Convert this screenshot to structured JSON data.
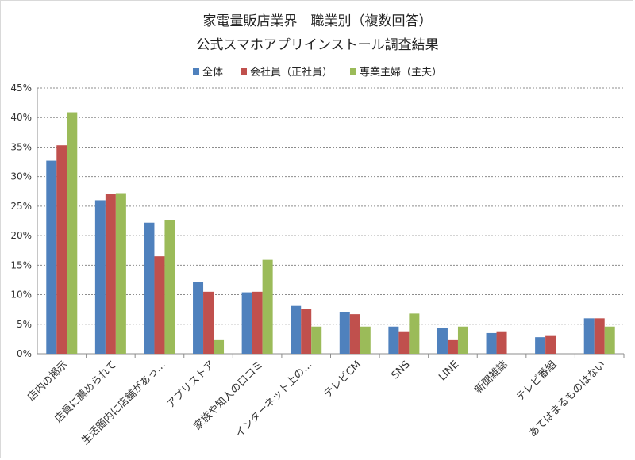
{
  "chart_data": {
    "type": "bar",
    "title": "家電量販店業界　職業別（複数回答）",
    "subtitle": "公式スマホアプリインストール調査結果",
    "categories": [
      "店内の掲示",
      "店員に薦められて",
      "生活圏内に店舗があっ…",
      "アプリストア",
      "家族や知人の口コミ",
      "インターネット上の…",
      "テレビCM",
      "SNS",
      "LINE",
      "新聞雑誌",
      "テレビ番組",
      "あてはまるものはない"
    ],
    "series": [
      {
        "name": "全体",
        "color": "#4f81bd",
        "values": [
          32.7,
          26.0,
          22.2,
          12.1,
          10.4,
          8.1,
          7.0,
          4.6,
          4.3,
          3.5,
          2.8,
          6.0
        ]
      },
      {
        "name": "会社員（正社員）",
        "color": "#c0504d",
        "values": [
          35.3,
          27.0,
          16.5,
          10.5,
          10.5,
          7.6,
          6.7,
          3.8,
          2.3,
          3.8,
          3.0,
          6.0
        ]
      },
      {
        "name": "専業主婦（主夫）",
        "color": "#9bbb59",
        "values": [
          40.9,
          27.2,
          22.7,
          2.3,
          15.9,
          4.6,
          4.6,
          6.8,
          4.6,
          0,
          0,
          4.6
        ]
      }
    ],
    "yticks": [
      "0%",
      "5%",
      "10%",
      "15%",
      "20%",
      "25%",
      "30%",
      "35%",
      "40%",
      "45%"
    ],
    "ylim": [
      0,
      45
    ],
    "grid": true,
    "legend_position": "top"
  }
}
